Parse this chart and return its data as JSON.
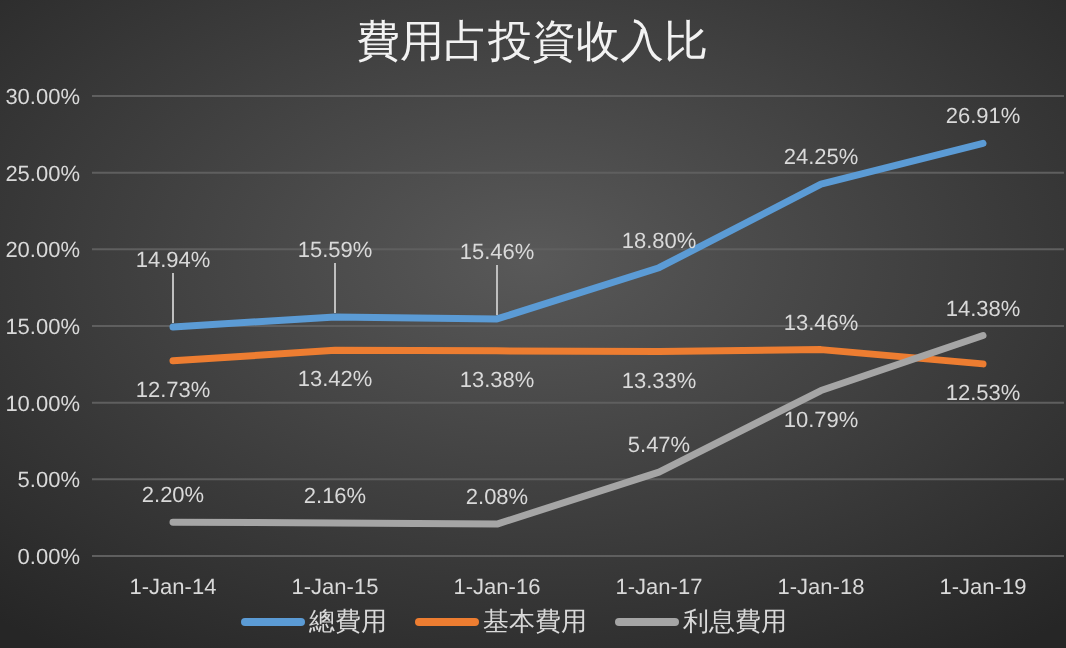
{
  "chart_data": {
    "type": "line",
    "title": "費用占投資收入比",
    "categories": [
      "1-Jan-14",
      "1-Jan-15",
      "1-Jan-16",
      "1-Jan-17",
      "1-Jan-18",
      "1-Jan-19"
    ],
    "series": [
      {
        "name": "總費用",
        "color": "#5b9bd5",
        "values": [
          14.94,
          15.59,
          15.46,
          18.8,
          24.25,
          26.91
        ],
        "value_labels": [
          "14.94%",
          "15.59%",
          "15.46%",
          "18.80%",
          "24.25%",
          "26.91%"
        ]
      },
      {
        "name": "基本費用",
        "color": "#ed7d31",
        "values": [
          12.73,
          13.42,
          13.38,
          13.33,
          13.46,
          12.53
        ],
        "value_labels": [
          "12.73%",
          "13.42%",
          "13.38%",
          "13.33%",
          "13.46%",
          "12.53%"
        ]
      },
      {
        "name": "利息費用",
        "color": "#a5a5a5",
        "values": [
          2.2,
          2.16,
          2.08,
          5.47,
          10.79,
          14.38
        ],
        "value_labels": [
          "2.20%",
          "2.16%",
          "2.08%",
          "5.47%",
          "10.79%",
          "14.38%"
        ]
      }
    ],
    "ylim": [
      0,
      30
    ],
    "yticks": [
      {
        "value": 0,
        "label": "0.00%"
      },
      {
        "value": 5,
        "label": "5.00%"
      },
      {
        "value": 10,
        "label": "10.00%"
      },
      {
        "value": 15,
        "label": "15.00%"
      },
      {
        "value": 20,
        "label": "20.00%"
      },
      {
        "value": 25,
        "label": "25.00%"
      },
      {
        "value": 30,
        "label": "30.00%"
      }
    ],
    "grid": "y",
    "legend": "bottom",
    "line_style": "solid"
  }
}
